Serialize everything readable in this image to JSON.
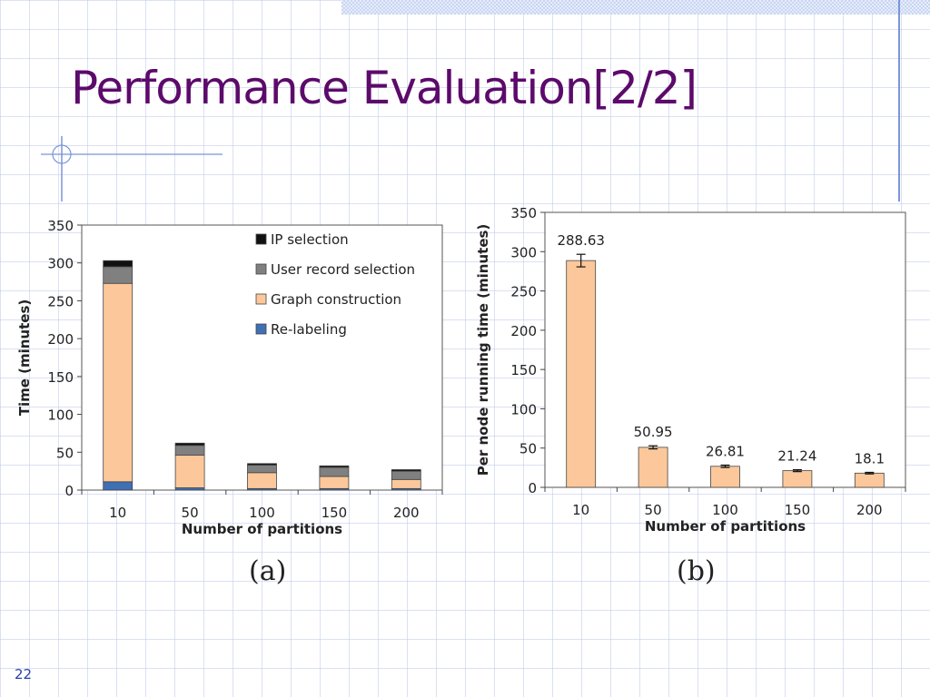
{
  "slide": {
    "title": "Performance Evaluation[2/2]",
    "number": "22",
    "caption_a": "(a)",
    "caption_b": "(b)"
  },
  "chart_data": [
    {
      "type": "bar",
      "stacked": true,
      "categories": [
        "10",
        "50",
        "100",
        "150",
        "200"
      ],
      "xlabel": "Number of partitions",
      "ylabel": "Time (minutes)",
      "ylim": [
        0,
        350
      ],
      "yticks": [
        0,
        50,
        100,
        150,
        200,
        250,
        300,
        350
      ],
      "grid": false,
      "legend": "top-right",
      "series": [
        {
          "name": "Re-labeling",
          "color": "#3f6fb5",
          "values": [
            11,
            3,
            2,
            2,
            2
          ]
        },
        {
          "name": "Graph construction",
          "color": "#fcc89b",
          "values": [
            262,
            43,
            21,
            16,
            12
          ]
        },
        {
          "name": "User record selection",
          "color": "#808080",
          "values": [
            22,
            13,
            10,
            12,
            11
          ]
        },
        {
          "name": "IP selection",
          "color": "#111111",
          "values": [
            8,
            3,
            2,
            2,
            2
          ]
        }
      ],
      "legend_order": [
        "IP selection",
        "User record selection",
        "Graph construction",
        "Re-labeling"
      ]
    },
    {
      "type": "bar",
      "categories": [
        "10",
        "50",
        "100",
        "150",
        "200"
      ],
      "xlabel": "Number of partitions",
      "ylabel": "Per node running time (minutes)",
      "ylim": [
        0,
        350
      ],
      "yticks": [
        0,
        50,
        100,
        150,
        200,
        250,
        300,
        350
      ],
      "grid": false,
      "bar_color": "#fcc89b",
      "values": [
        288.63,
        50.95,
        26.81,
        21.24,
        18.1
      ],
      "data_labels": [
        "288.63",
        "50.95",
        "26.81",
        "21.24",
        "18.1"
      ],
      "error": [
        8,
        2,
        1.5,
        1.2,
        1
      ]
    }
  ]
}
